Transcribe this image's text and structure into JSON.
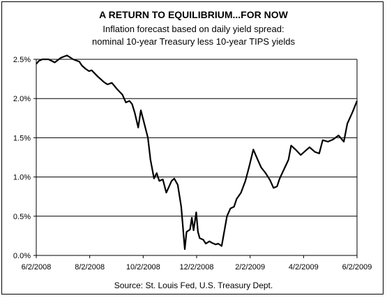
{
  "chart_data": {
    "type": "line",
    "title": "A RETURN TO EQUILIBRIUM...FOR NOW",
    "subtitle": [
      "Inflation forecast based on daily yield spread:",
      "nominal 10-year Treasury less 10-year TIPS yields"
    ],
    "source": "Source: St. Louis Fed, U.S. Treasury Dept.",
    "xlabel": "",
    "ylabel": "",
    "x_ticks": [
      "6/2/2008",
      "8/2/2008",
      "10/2/2008",
      "12/2/2008",
      "2/2/2009",
      "4/2/2009",
      "6/2/2009"
    ],
    "y_ticks": [
      "0.0%",
      "0.5%",
      "1.0%",
      "1.5%",
      "2.0%",
      "2.5%"
    ],
    "ylim": [
      0,
      2.5
    ],
    "xlim": [
      "2008-06-02",
      "2009-06-02"
    ],
    "grid": true,
    "line_color": "#000000",
    "series": [
      {
        "x": [
          "2008-06-02",
          "2008-06-05",
          "2008-06-09",
          "2008-06-16",
          "2008-06-23",
          "2008-06-30",
          "2008-07-07",
          "2008-07-14",
          "2008-07-21",
          "2008-07-24",
          "2008-07-28",
          "2008-08-01",
          "2008-08-04",
          "2008-08-11",
          "2008-08-18",
          "2008-08-22",
          "2008-08-27",
          "2008-09-02",
          "2008-09-08",
          "2008-09-12",
          "2008-09-16",
          "2008-09-19",
          "2008-09-22",
          "2008-09-26",
          "2008-09-29",
          "2008-10-02",
          "2008-10-07",
          "2008-10-10",
          "2008-10-14",
          "2008-10-17",
          "2008-10-20",
          "2008-10-24",
          "2008-10-28",
          "2008-11-03",
          "2008-11-06",
          "2008-11-10",
          "2008-11-14",
          "2008-11-18",
          "2008-11-20",
          "2008-11-24",
          "2008-11-26",
          "2008-11-28",
          "2008-12-01",
          "2008-12-03",
          "2008-12-05",
          "2008-12-09",
          "2008-12-12",
          "2008-12-16",
          "2008-12-19",
          "2008-12-23",
          "2008-12-26",
          "2008-12-30",
          "2009-01-05",
          "2009-01-09",
          "2009-01-13",
          "2009-01-16",
          "2009-01-21",
          "2009-01-26",
          "2009-01-30",
          "2009-02-04",
          "2009-02-09",
          "2009-02-13",
          "2009-02-18",
          "2009-02-23",
          "2009-02-27",
          "2009-03-03",
          "2009-03-06",
          "2009-03-11",
          "2009-03-16",
          "2009-03-19",
          "2009-03-24",
          "2009-03-30",
          "2009-04-03",
          "2009-04-09",
          "2009-04-15",
          "2009-04-20",
          "2009-04-24",
          "2009-04-30",
          "2009-05-06",
          "2009-05-12",
          "2009-05-18",
          "2009-05-22",
          "2009-05-28",
          "2009-06-02"
        ],
        "values": [
          2.44,
          2.48,
          2.5,
          2.5,
          2.46,
          2.52,
          2.55,
          2.5,
          2.47,
          2.42,
          2.38,
          2.35,
          2.36,
          2.28,
          2.21,
          2.18,
          2.2,
          2.12,
          2.05,
          1.95,
          1.97,
          1.93,
          1.82,
          1.63,
          1.85,
          1.72,
          1.5,
          1.22,
          0.98,
          1.05,
          0.95,
          0.97,
          0.8,
          0.95,
          0.98,
          0.9,
          0.62,
          0.08,
          0.3,
          0.33,
          0.48,
          0.32,
          0.55,
          0.3,
          0.22,
          0.2,
          0.15,
          0.18,
          0.16,
          0.14,
          0.15,
          0.12,
          0.5,
          0.6,
          0.62,
          0.72,
          0.8,
          0.95,
          1.12,
          1.35,
          1.22,
          1.12,
          1.05,
          0.96,
          0.86,
          0.88,
          0.98,
          1.1,
          1.22,
          1.4,
          1.35,
          1.28,
          1.32,
          1.38,
          1.32,
          1.3,
          1.47,
          1.45,
          1.48,
          1.53,
          1.45,
          1.68,
          1.83,
          1.97
        ]
      }
    ]
  }
}
